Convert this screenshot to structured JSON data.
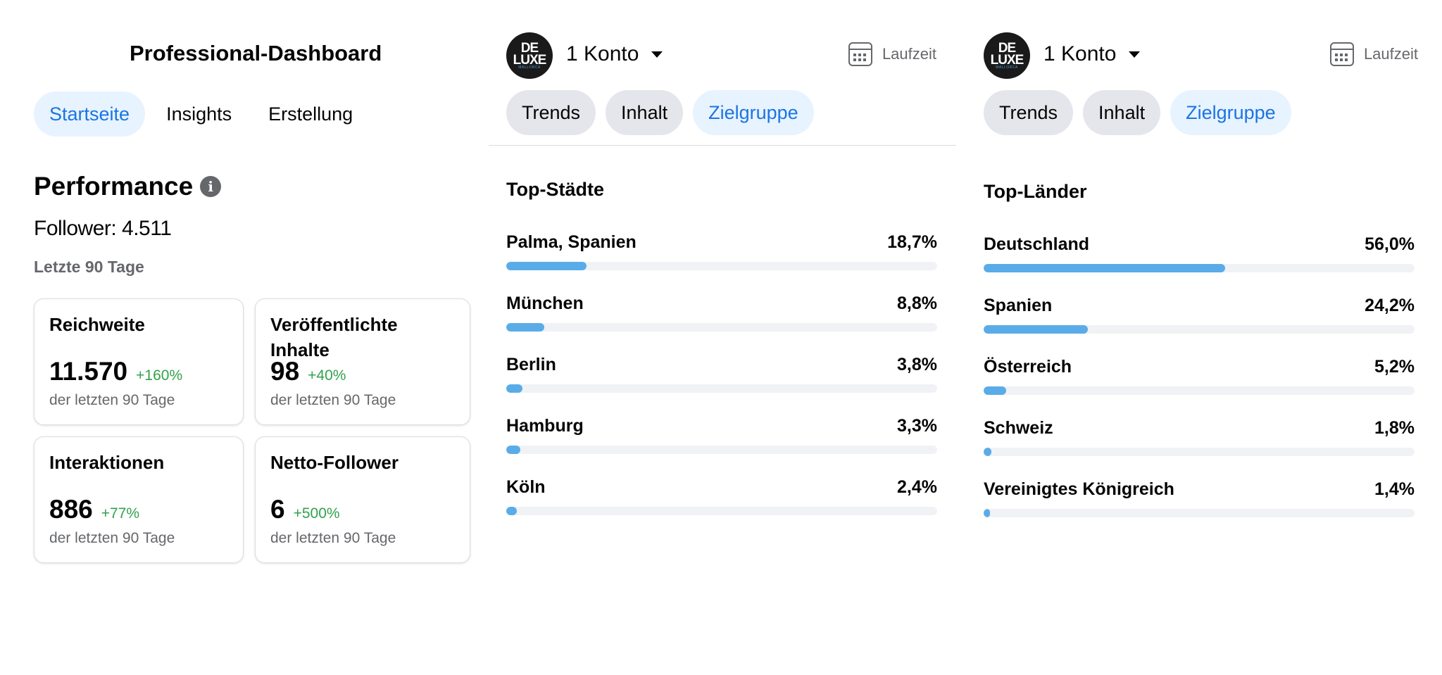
{
  "dashboard": {
    "title": "Professional-Dashboard",
    "tabs": [
      {
        "label": "Startseite",
        "active": true
      },
      {
        "label": "Insights",
        "active": false
      },
      {
        "label": "Erstellung",
        "active": false
      }
    ],
    "performance_title": "Performance",
    "followers": "Follower: 4.511",
    "period": "Letzte 90 Tage",
    "cards": [
      {
        "title": "Reichweite",
        "value": "11.570",
        "change": "+160%",
        "sub": "der letzten 90 Tage"
      },
      {
        "title": "Veröffentlichte Inhalte",
        "value": "98",
        "change": "+40%",
        "sub": "der letzten 90 Tage"
      },
      {
        "title": "Interaktionen",
        "value": "886",
        "change": "+77%",
        "sub": "der letzten 90 Tage"
      },
      {
        "title": "Netto-Follower",
        "value": "6",
        "change": "+500%",
        "sub": "der letzten 90 Tage"
      }
    ]
  },
  "avatar": {
    "line1": "DE",
    "line2": "LUXE",
    "line3": "MALLORCA"
  },
  "panels": [
    {
      "account": "1 Konto",
      "runtime": "Laufzeit",
      "tabs": [
        {
          "label": "Trends",
          "active": false
        },
        {
          "label": "Inhalt",
          "active": false
        },
        {
          "label": "Zielgruppe",
          "active": true
        }
      ],
      "list_title": "Top-Städte",
      "items": [
        {
          "label": "Palma, Spanien",
          "pct": "18,7%",
          "value": 18.7
        },
        {
          "label": "München",
          "pct": "8,8%",
          "value": 8.8
        },
        {
          "label": "Berlin",
          "pct": "3,8%",
          "value": 3.8
        },
        {
          "label": "Hamburg",
          "pct": "3,3%",
          "value": 3.3
        },
        {
          "label": "Köln",
          "pct": "2,4%",
          "value": 2.4
        }
      ]
    },
    {
      "account": "1 Konto",
      "runtime": "Laufzeit",
      "tabs": [
        {
          "label": "Trends",
          "active": false
        },
        {
          "label": "Inhalt",
          "active": false
        },
        {
          "label": "Zielgruppe",
          "active": true
        }
      ],
      "list_title": "Top-Länder",
      "items": [
        {
          "label": "Deutschland",
          "pct": "56,0%",
          "value": 56.0
        },
        {
          "label": "Spanien",
          "pct": "24,2%",
          "value": 24.2
        },
        {
          "label": "Österreich",
          "pct": "5,2%",
          "value": 5.2
        },
        {
          "label": "Schweiz",
          "pct": "1,8%",
          "value": 1.8
        },
        {
          "label": "Vereinigtes Königreich",
          "pct": "1,4%",
          "value": 1.4
        }
      ]
    }
  ],
  "colors": {
    "accent": "#1b74e4",
    "bar": "#5aace8",
    "positive": "#31a24c"
  }
}
